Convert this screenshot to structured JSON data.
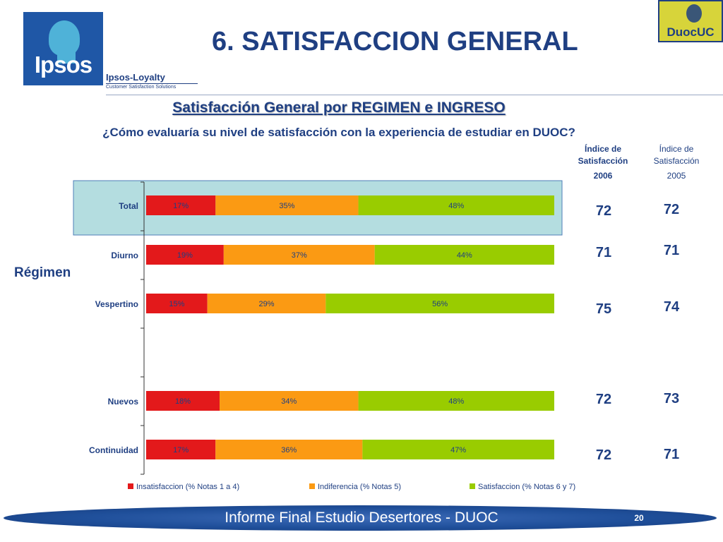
{
  "header": {
    "title": "6. SATISFACCION GENERAL",
    "ipsos_logo_text": "Ipsos",
    "loyalty_brand": "Ipsos-Loyalty",
    "loyalty_tagline": "Customer Satisfaction Solutions",
    "duoc_logo_text": "DuocUC"
  },
  "subtitle": "Satisfacción General por REGIMEN e INGRESO",
  "question": "¿Cómo evaluaría su nivel de satisfacción con la experiencia de estudiar en DUOC?",
  "index_columns": {
    "col_2006": {
      "label": "Índice de Satisfacción",
      "year": "2006"
    },
    "col_2005": {
      "label": "Índice de Satisfacción",
      "year": "2005"
    }
  },
  "group_label": "Régimen",
  "colors": {
    "insat": "#e3191b",
    "indif": "#fb9a13",
    "sat": "#99cc00",
    "highlight": "#b4dde0",
    "navy": "#1f3f82"
  },
  "chart_data": {
    "type": "bar",
    "orientation": "horizontal-stacked-100",
    "categories": [
      "Total",
      "Diurno",
      "Vespertino",
      "Nuevos",
      "Continuidad"
    ],
    "series": [
      {
        "name": "Insatisfaccion (% Notas 1 a 4)",
        "values": [
          17,
          19,
          15,
          18,
          17
        ],
        "labels": [
          "17%",
          "19%",
          "15%",
          "18%",
          "17%"
        ]
      },
      {
        "name": "Indiferencia (% Notas 5)",
        "values": [
          35,
          37,
          29,
          34,
          36
        ],
        "labels": [
          "35%",
          "37%",
          "29%",
          "34%",
          "36%"
        ]
      },
      {
        "name": "Satisfaccion (% Notas 6 y 7)",
        "values": [
          48,
          44,
          56,
          48,
          47
        ],
        "labels": [
          "48%",
          "44%",
          "56%",
          "48%",
          "47%"
        ]
      }
    ],
    "index_2006": [
      "72",
      "71",
      "75",
      "72",
      "72"
    ],
    "index_2005": [
      "72",
      "71",
      "74",
      "73",
      "71"
    ],
    "legend": "bottom"
  },
  "footer": {
    "text": "Informe Final Estudio Desertores - DUOC",
    "page": "20"
  }
}
